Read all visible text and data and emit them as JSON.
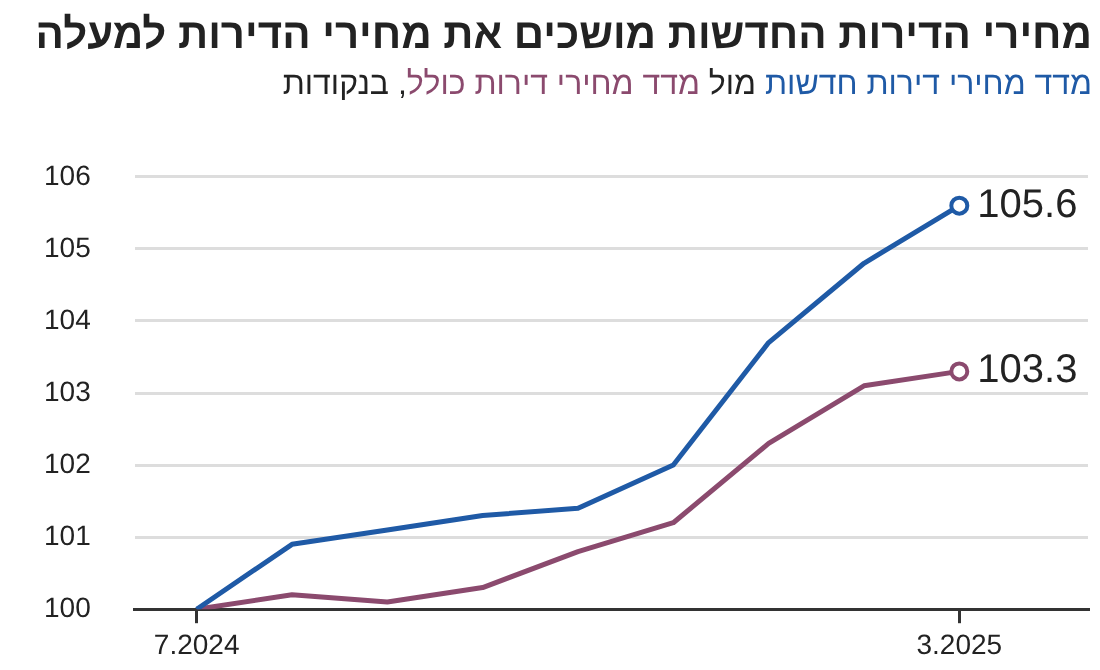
{
  "chart_data": {
    "type": "line",
    "title": "מחירי הדירות החדשות מושכים את מחירי הדירות למעלה",
    "annotations": [
      "מול",
      ", בנקודות"
    ],
    "categories": [
      "7.2024",
      null,
      null,
      null,
      null,
      null,
      null,
      null,
      "3.2025"
    ],
    "series": [
      {
        "name": "מדד מחירי דירות חדשות",
        "color": "#1f5aa6",
        "values": [
          100,
          100.9,
          101.1,
          101.3,
          101.4,
          102.0,
          103.7,
          104.8,
          105.6
        ],
        "value_labels": [
          null,
          null,
          null,
          null,
          null,
          null,
          null,
          null,
          "105.6"
        ]
      },
      {
        "name": "מדד מחירי דירות כולל",
        "color": "#8b4a6e",
        "values": [
          100,
          100.2,
          100.1,
          100.3,
          100.8,
          101.2,
          102.3,
          103.1,
          103.3
        ],
        "value_labels": [
          null,
          null,
          null,
          null,
          null,
          null,
          null,
          null,
          "103.3"
        ]
      }
    ],
    "ylim": [
      100,
      106
    ],
    "yticks": [
      100,
      101,
      102,
      103,
      104,
      105,
      106
    ],
    "grid": "y",
    "legend": "top right"
  }
}
